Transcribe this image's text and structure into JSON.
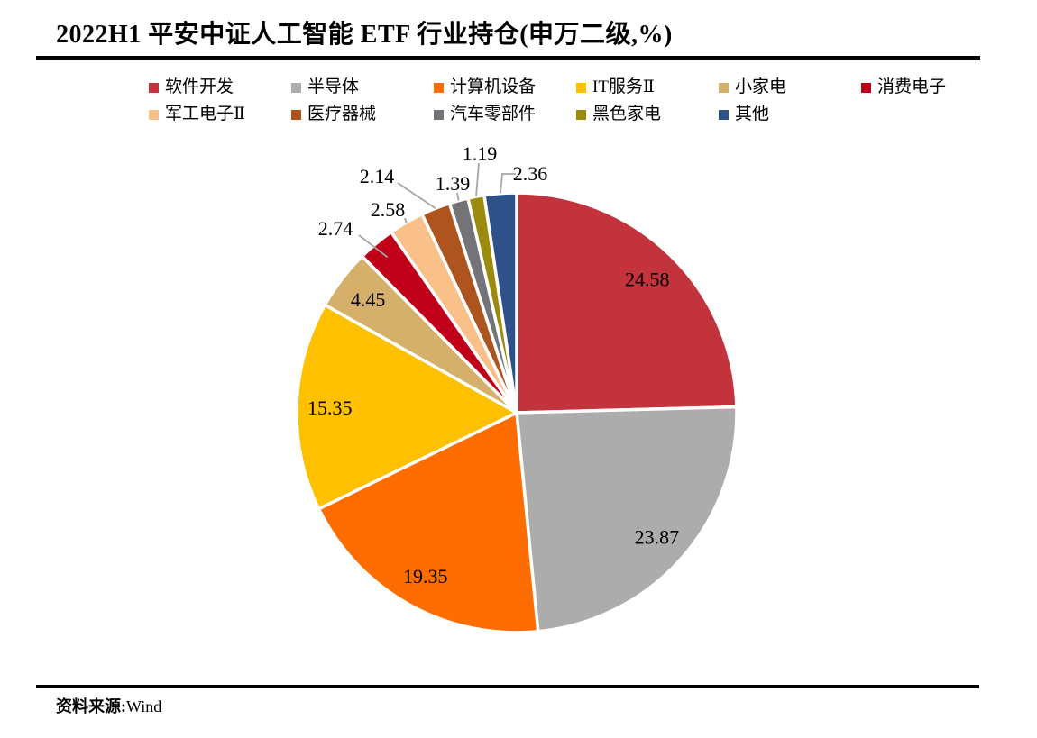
{
  "title": "2022H1 平安中证人工智能 ETF 行业持仓(申万二级,%)",
  "footer": {
    "source_label": "资料来源:",
    "source_value": "Wind"
  },
  "colors": {
    "text": "#000000",
    "leader_line": "#A6A6A6",
    "divider": "#000000",
    "slice_border": "#FFFFFF"
  },
  "chart_data": {
    "type": "pie",
    "title": "2022H1 平安中证人工智能 ETF 行业持仓(申万二级,%)",
    "value_unit": "%",
    "direction": "clockwise",
    "start_angle": "12-oclock",
    "legend_position": "top",
    "grid": false,
    "total": 100.0,
    "legend_rows": [
      [
        0,
        1,
        2,
        3,
        4,
        5
      ],
      [
        6,
        7,
        8,
        9,
        10
      ]
    ],
    "slices": [
      {
        "label": "软件开发",
        "value": 24.58,
        "color": "#C2333C",
        "label_placement": "inside"
      },
      {
        "label": "半导体",
        "value": 23.87,
        "color": "#ACACAC",
        "label_placement": "inside"
      },
      {
        "label": "计算机设备",
        "value": 19.35,
        "color": "#FF6C00",
        "label_placement": "inside"
      },
      {
        "label": "IT服务Ⅱ",
        "value": 15.35,
        "color": "#FFC000",
        "label_placement": "inside"
      },
      {
        "label": "小家电",
        "value": 4.45,
        "color": "#D5B06A",
        "label_placement": "inside"
      },
      {
        "label": "消费电子",
        "value": 2.74,
        "color": "#C00019",
        "label_placement": "outside"
      },
      {
        "label": "军工电子Ⅱ",
        "value": 2.58,
        "color": "#F9C08A",
        "label_placement": "outside"
      },
      {
        "label": "医疗器械",
        "value": 2.14,
        "color": "#AE551F",
        "label_placement": "outside"
      },
      {
        "label": "汽车零部件",
        "value": 1.39,
        "color": "#737378",
        "label_placement": "outside"
      },
      {
        "label": "黑色家电",
        "value": 1.19,
        "color": "#9C8A0C",
        "label_placement": "outside"
      },
      {
        "label": "其他",
        "value": 2.36,
        "color": "#2D5188",
        "label_placement": "outside"
      }
    ]
  }
}
